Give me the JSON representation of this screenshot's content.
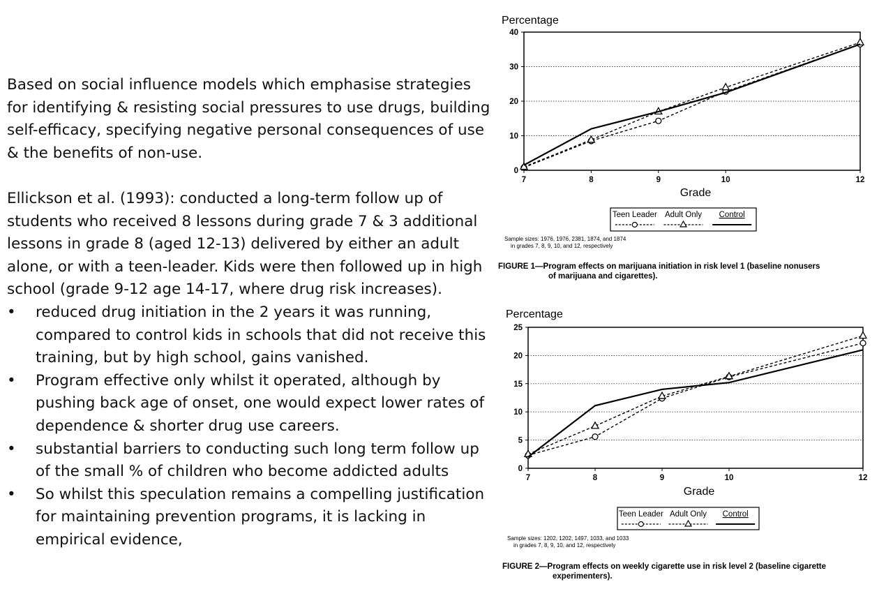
{
  "text": {
    "para1": "Based on social influence models which emphasise strategies for identifying & resisting social pressures to use drugs, building self-efficacy, specifying negative personal consequences of use & the benefits of non-use.",
    "para2": "Ellickson et al. (1993): conducted a long-term follow up of students who received 8 lessons during grade 7 & 3 additional lessons in grade 8 (aged 12-13) delivered by either an adult alone, or with a teen-leader.  Kids were then followed up in high school (grade 9-12 age 14-17, where drug risk increases).",
    "bullet_symbol": "•",
    "bullets": [
      "reduced drug initiation in the 2 years it was running, compared to control kids in schools that did not receive this training, but by high school, gains vanished.",
      "Program effective only whilst it operated, although by pushing back age of onset, one would expect lower rates of dependence & shorter drug use careers.",
      "substantial barriers to conducting such long term follow up of the small % of children who become addicted adults",
      "So whilst this speculation remains a compelling justification for maintaining prevention programs, it is lacking in empirical evidence,"
    ]
  },
  "figures": [
    {
      "sample_line1": "Sample sizes:  1976, 1976, 2381, 1874, and 1874",
      "sample_line2": "in grades 7, 8, 9, 10, and 12, respectively",
      "caption_line1": "FIGURE 1—Program effects on marijuana initiation in risk level 1 (baseline nonusers",
      "caption_line2": "of marijuana and cigarettes)."
    },
    {
      "sample_line1": "Sample sizes:  1202, 1202, 1497, 1033, and 1033",
      "sample_line2": "in grades 7, 8, 9, 10, and 12, respectively",
      "caption_line1": "FIGURE 2—Program effects on weekly cigarette use in risk level 2 (baseline cigarette",
      "caption_line2": "experimenters)."
    }
  ],
  "chart_data": [
    {
      "type": "line",
      "ylabel": "Percentage",
      "xlabel": "Grade",
      "x": [
        7,
        8,
        9,
        10,
        12
      ],
      "xlim": [
        7,
        12
      ],
      "ylim": [
        0,
        40
      ],
      "yticks": [
        0,
        10,
        20,
        30,
        40
      ],
      "grid": true,
      "legend_position": "bottom",
      "series": [
        {
          "name": "Teen Leader",
          "style": "dashed",
          "marker": "circle",
          "values": [
            0.8,
            8.5,
            14.3,
            22.8,
            36.5
          ]
        },
        {
          "name": "Adult Only",
          "style": "dashed",
          "marker": "triangle",
          "values": [
            1.0,
            8.8,
            17.0,
            24.0,
            37.0
          ]
        },
        {
          "name": "Control",
          "style": "solid",
          "marker": "none",
          "values": [
            1.5,
            12.0,
            17.0,
            22.5,
            36.5
          ]
        }
      ]
    },
    {
      "type": "line",
      "ylabel": "Percentage",
      "xlabel": "Grade",
      "x": [
        7,
        8,
        9,
        10,
        12
      ],
      "xlim": [
        7,
        12
      ],
      "ylim": [
        0,
        25
      ],
      "yticks": [
        0,
        5,
        10,
        15,
        20,
        25
      ],
      "grid": true,
      "legend_position": "bottom",
      "series": [
        {
          "name": "Teen Leader",
          "style": "dashed",
          "marker": "circle",
          "values": [
            2.3,
            5.6,
            12.4,
            16.2,
            22.2
          ]
        },
        {
          "name": "Adult Only",
          "style": "dashed",
          "marker": "triangle",
          "values": [
            2.5,
            7.5,
            12.8,
            16.3,
            23.5
          ]
        },
        {
          "name": "Control",
          "style": "solid",
          "marker": "none",
          "values": [
            2.0,
            11.1,
            14.0,
            15.2,
            21.0
          ]
        }
      ]
    }
  ]
}
